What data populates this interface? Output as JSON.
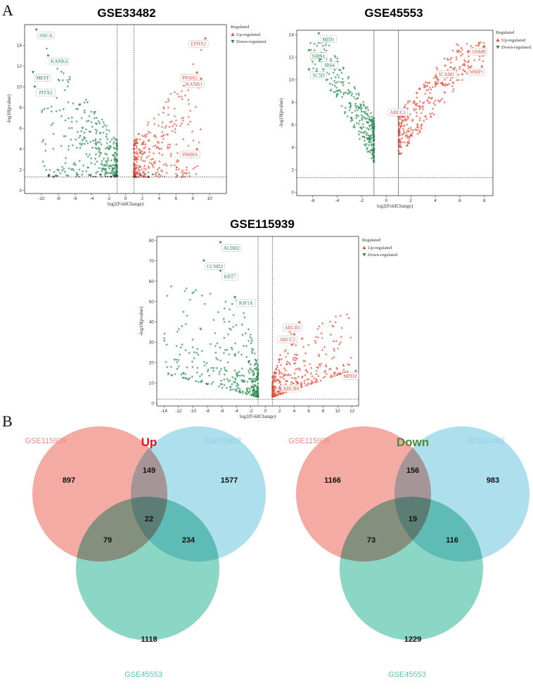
{
  "panel_labels": [
    "A",
    "B"
  ],
  "colors": {
    "up": "#e8503c",
    "down": "#238b4e",
    "ns": "#333333",
    "set_115939": "#ee8a80",
    "set_33482": "#8fd2e4",
    "set_45553": "#5ec6ad",
    "up_title": "#e8141c",
    "down_title": "#4e8a3a"
  },
  "chart_data": [
    {
      "type": "scatter",
      "title": "GSE33482",
      "xlabel": "log2(FoldChange)",
      "ylabel": "-log10(pvalue)",
      "xlim": [
        -12,
        12
      ],
      "ylim": [
        -0.3,
        16
      ],
      "xticks": [
        -10,
        -8,
        -6,
        -4,
        -2,
        0,
        2,
        4,
        6,
        8,
        10
      ],
      "yticks": [
        0,
        2,
        4,
        6,
        8,
        10,
        12,
        14
      ],
      "fc_threshold": [
        -1,
        1
      ],
      "p_threshold": 1.3,
      "legend": {
        "title": "Regulated",
        "entries": [
          "Up-regulated",
          "Down-regulated"
        ],
        "position": "right"
      },
      "labeled_genes": [
        {
          "gene": "SNCA",
          "x": -10.6,
          "y": 15.5,
          "group": "down"
        },
        {
          "gene": "KANK4",
          "x": -9.2,
          "y": 13.0,
          "group": "down"
        },
        {
          "gene": "MEST",
          "x": -11.0,
          "y": 11.4,
          "group": "down"
        },
        {
          "gene": "PITX2",
          "x": -10.8,
          "y": 10.0,
          "group": "down"
        },
        {
          "gene": "EPHX2",
          "x": 9.5,
          "y": 14.7,
          "group": "up"
        },
        {
          "gene": "PPARG",
          "x": 8.5,
          "y": 11.4,
          "group": "up"
        },
        {
          "gene": "KANK1",
          "x": 9.0,
          "y": 10.8,
          "group": "up"
        },
        {
          "gene": "INHBA",
          "x": 8.5,
          "y": 4.0,
          "group": "up"
        }
      ]
    },
    {
      "type": "scatter",
      "title": "GSE45553",
      "xlabel": "log2(FoldChange)",
      "ylabel": "-log10(pvalue)",
      "xlim": [
        -7.3,
        8.7
      ],
      "ylim": [
        -0.3,
        14.4
      ],
      "xticks": [
        -6,
        -4,
        -2,
        0,
        2,
        4,
        6,
        8
      ],
      "yticks": [
        0,
        2,
        4,
        6,
        8,
        10,
        12,
        14
      ],
      "fc_threshold": [
        -1,
        1
      ],
      "p_threshold": 1.3,
      "legend": {
        "title": "Regulated",
        "entries": [
          "Up-regulated",
          "Down-regulated"
        ],
        "position": "right"
      },
      "labeled_genes": [
        {
          "gene": "MID1",
          "x": -5.5,
          "y": 14.1,
          "group": "down"
        },
        {
          "gene": "NRN1",
          "x": -6.3,
          "y": 12.6,
          "group": "down"
        },
        {
          "gene": "IRS4",
          "x": -5.4,
          "y": 11.8,
          "group": "down"
        },
        {
          "gene": "SC5D",
          "x": -6.3,
          "y": 10.9,
          "group": "down"
        },
        {
          "gene": "OSMR",
          "x": 8.0,
          "y": 13.0,
          "group": "up"
        },
        {
          "gene": "ICAM1",
          "x": 5.5,
          "y": 11.0,
          "group": "up"
        },
        {
          "gene": "MMP1",
          "x": 7.8,
          "y": 11.2,
          "group": "up"
        },
        {
          "gene": "ABCC1",
          "x": 1.5,
          "y": 7.6,
          "group": "up"
        }
      ]
    },
    {
      "type": "scatter",
      "title": "GSE115939",
      "xlabel": "log2(FoldChange)",
      "ylabel": "-log10(pvalue)",
      "xlim": [
        -15,
        12.9
      ],
      "ylim": [
        -1.4,
        82
      ],
      "xticks": [
        -14,
        -12,
        -10,
        -8,
        -6,
        -4,
        -2,
        0,
        2,
        4,
        6,
        8,
        10,
        12
      ],
      "yticks": [
        0,
        10,
        20,
        30,
        40,
        50,
        60,
        70,
        80
      ],
      "fc_threshold": [
        -1,
        1
      ],
      "p_threshold": 2,
      "legend": {
        "title": "Regulated",
        "entries": [
          "Up-regulated",
          "Down-regulated"
        ],
        "position": "right"
      },
      "labeled_genes": [
        {
          "gene": "ALDH2",
          "x": -6.2,
          "y": 79,
          "group": "down"
        },
        {
          "gene": "CCND2",
          "x": -8.5,
          "y": 70,
          "group": "down"
        },
        {
          "gene": "KRT7",
          "x": -6.2,
          "y": 65,
          "group": "down"
        },
        {
          "gene": "KIF1A",
          "x": -4.2,
          "y": 52,
          "group": "down"
        },
        {
          "gene": "ABCC2",
          "x": 4.0,
          "y": 34,
          "group": "up"
        },
        {
          "gene": "ABCB1",
          "x": 4.7,
          "y": 40,
          "group": "up"
        },
        {
          "gene": "ABCB4",
          "x": 4.5,
          "y": 10,
          "group": "up"
        },
        {
          "gene": "MPDZ",
          "x": 12.5,
          "y": 16,
          "group": "up"
        }
      ]
    },
    {
      "type": "venn",
      "title": "Up",
      "sets": [
        "GSE115939",
        "GSE33482",
        "GSE45553"
      ],
      "regions": {
        "GSE115939_only": 897,
        "GSE33482_only": 1577,
        "GSE45553_only": 1118,
        "GSE115939_GSE33482": 149,
        "GSE115939_GSE45553": 79,
        "GSE33482_GSE45553": 234,
        "all_three": 22
      }
    },
    {
      "type": "venn",
      "title": "Down",
      "sets": [
        "GSE115939",
        "GSE33482",
        "GSE45553"
      ],
      "regions": {
        "GSE115939_only": 1166,
        "GSE33482_only": 983,
        "GSE45553_only": 1229,
        "GSE115939_GSE33482": 156,
        "GSE115939_GSE45553": 73,
        "GSE33482_GSE45553": 116,
        "all_three": 19
      }
    }
  ]
}
